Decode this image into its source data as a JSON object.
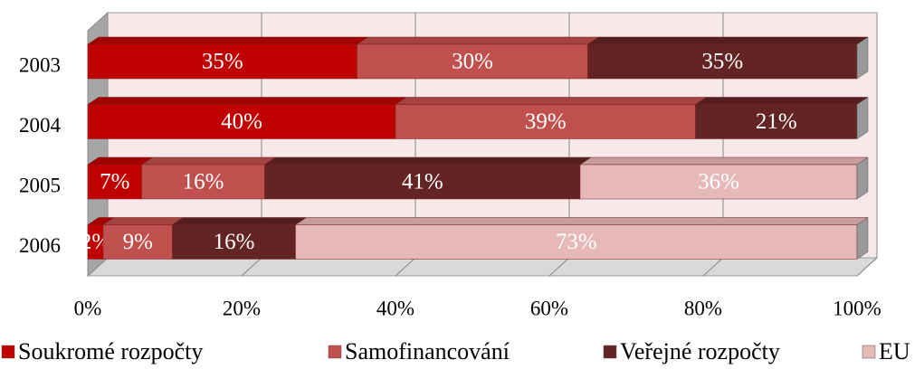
{
  "chart_data": {
    "type": "bar",
    "orientation": "horizontal",
    "stacked": true,
    "categories": [
      "2003",
      "2004",
      "2005",
      "2006"
    ],
    "series": [
      {
        "name": "Soukromé rozpočty",
        "color": "#c00000",
        "values": [
          35,
          40,
          7,
          2
        ],
        "value_labels": [
          "35%",
          "40%",
          "7%",
          "2%"
        ]
      },
      {
        "name": "Samofinancování",
        "color": "#c0504d",
        "values": [
          30,
          39,
          16,
          9
        ],
        "value_labels": [
          "30%",
          "39%",
          "16%",
          "9%"
        ]
      },
      {
        "name": "Veřejné rozpočty",
        "color": "#632523",
        "values": [
          35,
          21,
          41,
          16
        ],
        "value_labels": [
          "35%",
          "21%",
          "41%",
          "16%"
        ]
      },
      {
        "name": "EU",
        "color": "#e6b9b8",
        "values": [
          0,
          0,
          36,
          73
        ],
        "value_labels": [
          null,
          null,
          "36%",
          "73%"
        ]
      }
    ],
    "xlim": [
      0,
      100
    ],
    "xticks": [
      {
        "value": 0,
        "label": "0%"
      },
      {
        "value": 20,
        "label": "20%"
      },
      {
        "value": 40,
        "label": "40%"
      },
      {
        "value": 60,
        "label": "60%"
      },
      {
        "value": 80,
        "label": "80%"
      },
      {
        "value": 100,
        "label": "100%"
      }
    ],
    "grid": true,
    "legend": "bottom"
  }
}
